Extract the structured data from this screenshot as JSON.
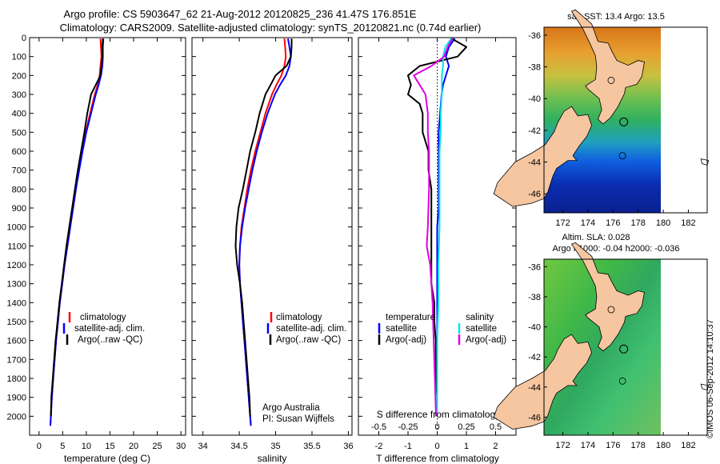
{
  "header": {
    "title_line1": "Argo profile: CS 5903647_62 21-Aug-2012 20120825_236 41.47S 176.851E",
    "title_line2": "Climatology: CARS2009. Satellite-adjusted climatology: synTS_20120821.nc (0.74d earlier)"
  },
  "colors": {
    "climatology": "#ff0000",
    "satellite": "#0000ff",
    "argo": "#000000",
    "s_satellite": "#00e5e5",
    "s_argo": "#e000e0",
    "land": "#f5c6a0"
  },
  "chart_data": [
    {
      "type": "line",
      "id": "temperature-profile",
      "xlabel": "temperature (deg C)",
      "ylabel": "",
      "xlim": [
        -2,
        31
      ],
      "ylim": [
        2100,
        0
      ],
      "xticks": [
        0,
        5,
        10,
        15,
        20,
        25,
        30
      ],
      "yticks": [
        0,
        100,
        200,
        300,
        400,
        500,
        600,
        700,
        800,
        900,
        1000,
        1100,
        1200,
        1300,
        1400,
        1500,
        1600,
        1700,
        1800,
        1900,
        2000
      ],
      "legend": [
        "climatology",
        "satellite-adj. clim.",
        "Argo(..raw -QC)"
      ],
      "series": [
        {
          "name": "climatology",
          "color": "#ff0000",
          "depth": [
            5,
            50,
            100,
            150,
            200,
            250,
            300,
            400,
            500,
            600,
            700,
            800,
            900,
            1000,
            1100,
            1200,
            1300,
            1400,
            1500,
            1600,
            1700,
            1800,
            1900,
            2000,
            2050
          ],
          "values": [
            13.0,
            13.1,
            13.2,
            13.0,
            12.8,
            12.4,
            11.8,
            10.8,
            9.9,
            9.1,
            8.4,
            7.8,
            7.2,
            6.6,
            6.0,
            5.4,
            4.9,
            4.4,
            4.0,
            3.6,
            3.3,
            3.0,
            2.7,
            2.5,
            2.4
          ]
        },
        {
          "name": "satellite-adj. clim.",
          "color": "#0000ff",
          "depth": [
            5,
            50,
            100,
            150,
            200,
            250,
            300,
            400,
            500,
            600,
            700,
            800,
            900,
            1000,
            1100,
            1200,
            1300,
            1400,
            1500,
            1600,
            1700,
            1800,
            1900,
            2000,
            2050
          ],
          "values": [
            13.6,
            13.5,
            13.5,
            13.4,
            13.1,
            12.6,
            12.0,
            11.0,
            10.0,
            9.2,
            8.5,
            7.8,
            7.2,
            6.6,
            6.0,
            5.4,
            4.9,
            4.4,
            4.0,
            3.6,
            3.3,
            3.0,
            2.7,
            2.5,
            2.4
          ]
        },
        {
          "name": "Argo(..raw -QC)",
          "color": "#000000",
          "depth": [
            5,
            50,
            100,
            150,
            200,
            250,
            300,
            350,
            400,
            500,
            600,
            700,
            800,
            900,
            1000,
            1100,
            1200,
            1300,
            1400,
            1500,
            1600,
            1700,
            1800,
            1900,
            2000
          ],
          "values": [
            13.5,
            13.4,
            13.4,
            13.2,
            13.0,
            12.0,
            11.0,
            10.6,
            10.2,
            9.6,
            8.9,
            8.2,
            7.6,
            7.0,
            6.4,
            5.8,
            5.3,
            4.8,
            4.3,
            3.9,
            3.5,
            3.2,
            2.9,
            2.6,
            2.5
          ]
        }
      ]
    },
    {
      "type": "line",
      "id": "salinity-profile",
      "xlabel": "salinity",
      "ylabel": "",
      "xlim": [
        33.85,
        36.05
      ],
      "ylim": [
        2100,
        0
      ],
      "xticks": [
        34,
        34.5,
        35,
        35.5,
        36
      ],
      "xticklabels": [
        "34",
        "34.5",
        "35",
        "35.5",
        "36"
      ],
      "legend": [
        "climatology",
        "satellite-adj. clim.",
        "Argo(..raw -QC)"
      ],
      "annotations": [
        "Argo Australia",
        "PI: Susan Wijffels"
      ],
      "series": [
        {
          "name": "climatology",
          "color": "#ff0000",
          "depth": [
            5,
            50,
            100,
            150,
            200,
            250,
            300,
            400,
            500,
            600,
            700,
            800,
            900,
            1000,
            1100,
            1200,
            1300,
            1400,
            1500,
            1600,
            1700,
            1800,
            1900,
            2000,
            2050
          ],
          "values": [
            35.12,
            35.13,
            35.14,
            35.12,
            35.08,
            35.01,
            34.95,
            34.86,
            34.79,
            34.72,
            34.66,
            34.61,
            34.57,
            34.53,
            34.51,
            34.5,
            34.51,
            34.53,
            34.55,
            34.57,
            34.59,
            34.61,
            34.63,
            34.65,
            34.66
          ]
        },
        {
          "name": "satellite-adj. clim.",
          "color": "#0000ff",
          "depth": [
            5,
            50,
            100,
            150,
            200,
            250,
            300,
            400,
            500,
            600,
            700,
            800,
            900,
            1000,
            1100,
            1200,
            1300,
            1400,
            1500,
            1600,
            1700,
            1800,
            1900,
            2000,
            2050
          ],
          "values": [
            35.17,
            35.19,
            35.21,
            35.19,
            35.14,
            35.06,
            34.99,
            34.89,
            34.81,
            34.74,
            34.68,
            34.63,
            34.58,
            34.54,
            34.51,
            34.5,
            34.51,
            34.53,
            34.55,
            34.57,
            34.59,
            34.61,
            34.63,
            34.65,
            34.66
          ]
        },
        {
          "name": "Argo(..raw -QC)",
          "color": "#000000",
          "depth": [
            5,
            50,
            100,
            150,
            200,
            250,
            300,
            350,
            400,
            500,
            600,
            700,
            800,
            900,
            1000,
            1100,
            1200,
            1300,
            1400,
            1500,
            1600,
            1700,
            1800,
            1900,
            2000
          ],
          "values": [
            35.22,
            35.22,
            35.21,
            35.15,
            35.0,
            34.93,
            34.86,
            34.82,
            34.78,
            34.72,
            34.65,
            34.6,
            34.55,
            34.49,
            34.46,
            34.45,
            34.47,
            34.51,
            34.54,
            34.56,
            34.58,
            34.6,
            34.62,
            34.64,
            34.65
          ]
        }
      ]
    },
    {
      "type": "line",
      "id": "difference-profile",
      "xlabel": "T difference from climatology",
      "x2label": "S difference from climatology",
      "xlim": [
        -2.7,
        2.7
      ],
      "ylim": [
        2100,
        0
      ],
      "xticks": [
        -2,
        -1,
        0,
        1,
        2
      ],
      "x2ticks": [
        -0.5,
        -0.25,
        0,
        0.25,
        0.5
      ],
      "x2ticklabels": [
        "-0.5",
        "-0.25",
        "0",
        "0.25",
        "0.5"
      ],
      "legend_groups": [
        "temperature",
        "salinity"
      ],
      "legend": [
        "satellite",
        "Argo(-adj)",
        "satellite",
        "Argo(-adj)"
      ],
      "series": [
        {
          "name": "temperature satellite",
          "color": "#0000ff",
          "depth": [
            5,
            50,
            100,
            150,
            200,
            250,
            300,
            400,
            500,
            600,
            700,
            800,
            900,
            1000,
            1100,
            1200,
            1300,
            1400,
            1500,
            1600,
            1700,
            1800,
            1900,
            2000
          ],
          "values": [
            0.6,
            0.4,
            0.3,
            0.4,
            0.3,
            0.2,
            0.15,
            0.1,
            0.05,
            0.05,
            0.05,
            0.05,
            0.05,
            0.0,
            0.0,
            0.0,
            0.0,
            0.0,
            0.0,
            0.0,
            0.0,
            0.0,
            0.0,
            0.0
          ]
        },
        {
          "name": "temperature Argo(-adj)",
          "color": "#000000",
          "depth": [
            5,
            50,
            100,
            150,
            200,
            250,
            300,
            350,
            400,
            500,
            600,
            700,
            800,
            900,
            1000,
            1100,
            1200,
            1300,
            1400,
            1500,
            1600,
            1700,
            1800,
            1900,
            2000
          ],
          "values": [
            0.5,
            1.0,
            0.7,
            -0.6,
            -1.0,
            -0.9,
            -1.0,
            -0.6,
            -0.5,
            -0.5,
            -0.3,
            -0.3,
            -0.2,
            -0.2,
            -0.2,
            -0.2,
            -0.2,
            -0.2,
            -0.1,
            -0.1,
            -0.05,
            -0.05,
            -0.05,
            0.0,
            0.0
          ]
        },
        {
          "name": "salinity satellite",
          "color": "#00e5e5",
          "depth": [
            5,
            50,
            100,
            150,
            200,
            300,
            400,
            500,
            600,
            800,
            1000,
            1200,
            1400,
            1600,
            1800,
            2000
          ],
          "values": [
            0.12,
            0.07,
            0.05,
            0.05,
            0.04,
            0.04,
            0.03,
            0.03,
            0.02,
            0.02,
            0.02,
            0.01,
            0.01,
            0.0,
            0.0,
            0.0
          ]
        },
        {
          "name": "salinity Argo(-adj)",
          "color": "#e000e0",
          "depth": [
            5,
            50,
            100,
            150,
            200,
            250,
            300,
            400,
            500,
            600,
            800,
            1000,
            1100,
            1200,
            1400,
            1600,
            1800,
            2000
          ],
          "values": [
            0.13,
            0.09,
            0.06,
            -0.05,
            -0.2,
            -0.15,
            -0.1,
            -0.08,
            -0.08,
            -0.07,
            -0.07,
            -0.08,
            -0.09,
            -0.06,
            -0.04,
            -0.03,
            -0.02,
            -0.01
          ]
        }
      ]
    },
    {
      "type": "heatmap",
      "id": "sst-map",
      "title": "sat. SST: 13.4 Argo: 13.5",
      "xticks": [
        172,
        174,
        176,
        178,
        180,
        182
      ],
      "yticks": [
        -36,
        -38,
        -40,
        -42,
        -44,
        -46
      ],
      "xlim": [
        170.5,
        183.5
      ],
      "ylim": [
        -47.2,
        -35.5
      ]
    },
    {
      "type": "heatmap",
      "id": "sla-map",
      "title": "Altim. SLA: 0.028",
      "subtitle": "Argo h1000: -0.04 h2000: -0.036",
      "xticks": [
        172,
        174,
        176,
        178,
        180,
        182
      ],
      "yticks": [
        -36,
        -38,
        -40,
        -42,
        -44,
        -46
      ],
      "xlim": [
        170.5,
        183.5
      ],
      "ylim": [
        -47.2,
        -35.5
      ]
    }
  ],
  "credit": "©IMOS 06-Sep-2012 14:10:37",
  "profile_position": {
    "lon": 176.851,
    "lat": -41.47
  }
}
